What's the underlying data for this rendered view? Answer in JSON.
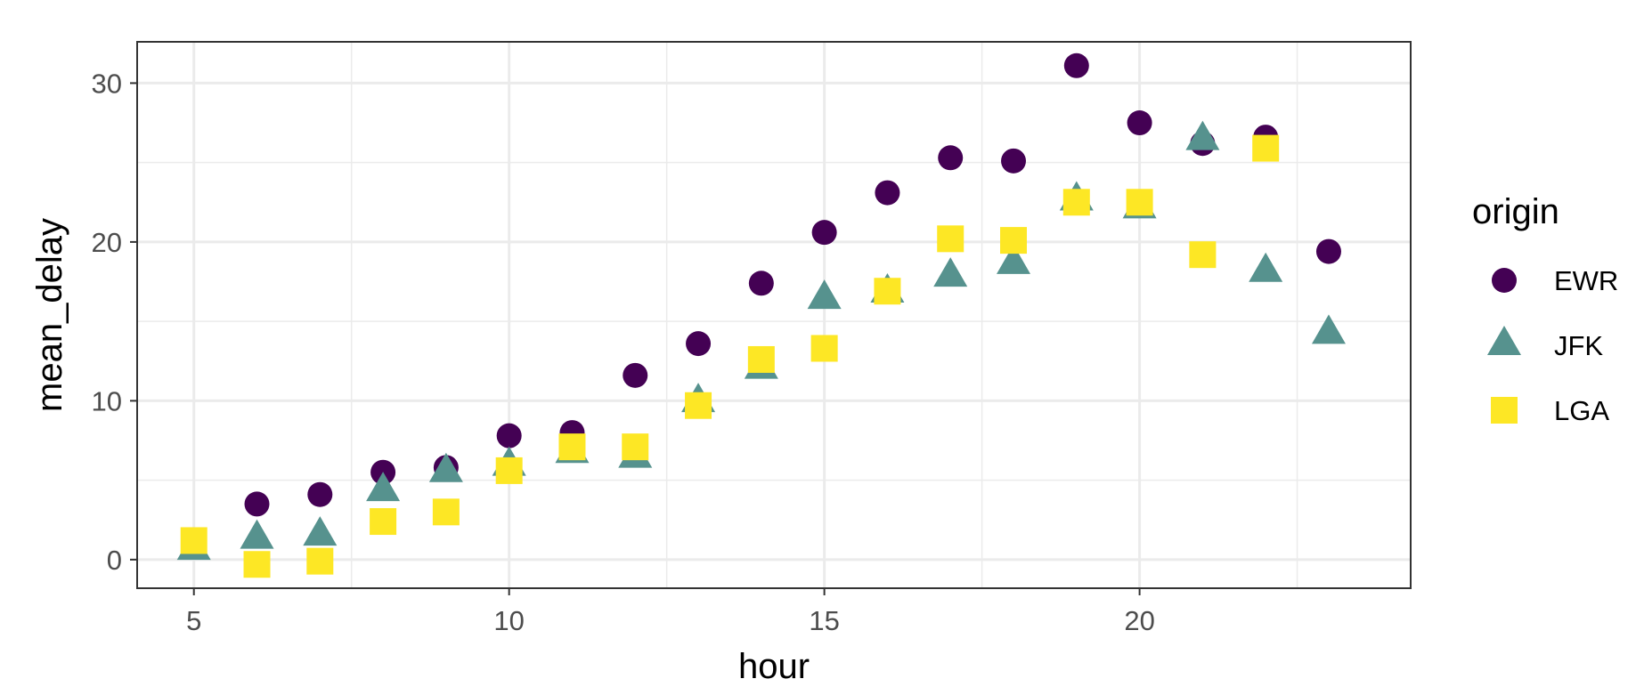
{
  "chart_data": {
    "type": "scatter",
    "xlabel": "hour",
    "ylabel": "mean_delay",
    "xlim": [
      4.1,
      24.3
    ],
    "ylim": [
      -1.8,
      32.6
    ],
    "x_ticks": [
      5,
      10,
      15,
      20
    ],
    "y_ticks": [
      0,
      10,
      20,
      30
    ],
    "grid": true,
    "legend": {
      "title": "origin",
      "position": "right"
    },
    "series": [
      {
        "name": "EWR",
        "shape": "circle",
        "color": "#440154",
        "x": [
          5,
          6,
          7,
          8,
          9,
          10,
          11,
          12,
          13,
          14,
          15,
          16,
          17,
          18,
          19,
          20,
          21,
          22,
          23
        ],
        "y": [
          0.8,
          3.5,
          4.1,
          5.5,
          5.8,
          7.8,
          8.0,
          11.6,
          13.6,
          17.4,
          20.6,
          23.1,
          25.3,
          25.1,
          31.1,
          27.5,
          26.2,
          26.6,
          19.4
        ]
      },
      {
        "name": "JFK",
        "shape": "triangle",
        "color": "#56928E",
        "x": [
          5,
          6,
          7,
          8,
          9,
          10,
          11,
          12,
          13,
          14,
          15,
          16,
          17,
          18,
          19,
          20,
          21,
          22,
          23
        ],
        "y": [
          0.6,
          1.3,
          1.5,
          4.3,
          5.5,
          5.9,
          6.7,
          6.4,
          9.9,
          12.0,
          16.4,
          16.8,
          17.8,
          18.6,
          22.6,
          22.1,
          26.4,
          18.1,
          14.2
        ]
      },
      {
        "name": "LGA",
        "shape": "square",
        "color": "#FDE725",
        "x": [
          5,
          6,
          7,
          8,
          9,
          10,
          11,
          12,
          13,
          14,
          15,
          16,
          17,
          18,
          19,
          20,
          21,
          22
        ],
        "y": [
          1.2,
          -0.3,
          -0.1,
          2.4,
          3.0,
          5.6,
          7.1,
          7.1,
          9.7,
          12.6,
          13.3,
          16.9,
          20.2,
          20.1,
          22.5,
          22.5,
          19.2,
          25.9
        ]
      }
    ]
  }
}
